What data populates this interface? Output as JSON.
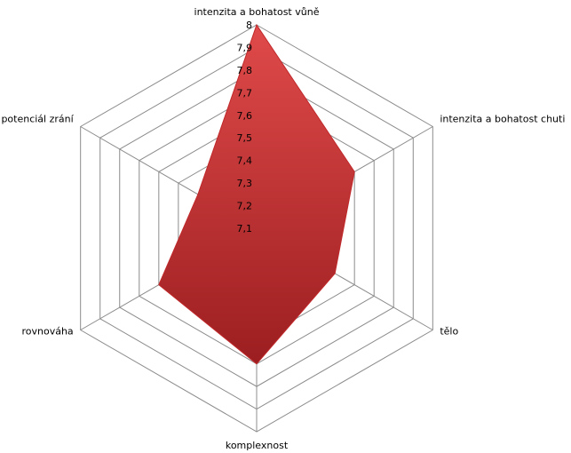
{
  "chart_data": {
    "type": "radar",
    "categories": [
      "intenzita a bohatost  vůně",
      "intenzita a bohatost  chuti",
      "tělo",
      "komplexnost",
      "rovnováha",
      "potenciál zrání"
    ],
    "values": [
      8,
      7.6,
      7.5,
      7.7,
      7.6,
      7.4
    ],
    "color": "#c0282a",
    "ylim": [
      7.1,
      8
    ],
    "yticks": [
      {
        "value": 7.1,
        "label": "7,1"
      },
      {
        "value": 7.2,
        "label": "7,2"
      },
      {
        "value": 7.3,
        "label": "7,3"
      },
      {
        "value": 7.4,
        "label": "7,4"
      },
      {
        "value": 7.5,
        "label": "7,5"
      },
      {
        "value": 7.6,
        "label": "7,6"
      },
      {
        "value": 7.7,
        "label": "7,7"
      },
      {
        "value": 7.8,
        "label": "7,8"
      },
      {
        "value": 7.9,
        "label": "7,9"
      },
      8
    ],
    "grid": true
  }
}
